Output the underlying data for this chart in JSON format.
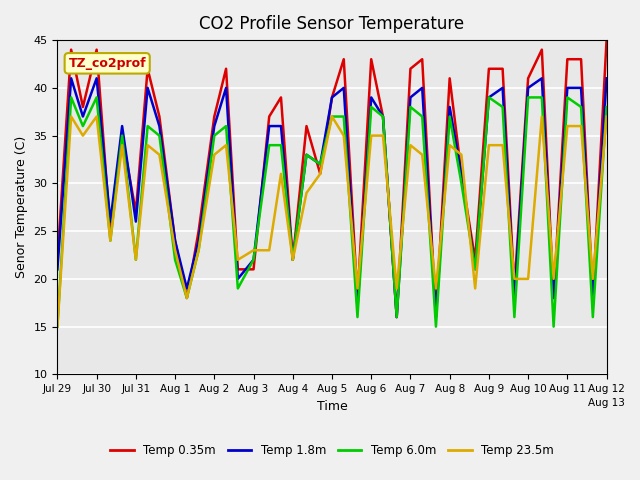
{
  "title": "CO2 Profile Sensor Temperature",
  "xlabel": "Time",
  "ylabel": "Senor Temperature (C)",
  "ylim": [
    10,
    45
  ],
  "xlim": [
    0,
    14
  ],
  "annotation": "TZ_co2prof",
  "legend": [
    {
      "label": "Temp 0.35m",
      "color": "#dd0000"
    },
    {
      "label": "Temp 1.8m",
      "color": "#0000cc"
    },
    {
      "label": "Temp 6.0m",
      "color": "#00cc00"
    },
    {
      "label": "Temp 23.5m",
      "color": "#ddaa00"
    }
  ],
  "series": {
    "red": {
      "x": [
        0,
        0.35,
        0.65,
        1.0,
        1.35,
        1.65,
        2.0,
        2.3,
        2.6,
        3.0,
        3.3,
        3.6,
        4.0,
        4.3,
        4.6,
        5.0,
        5.4,
        5.7,
        6.0,
        6.35,
        6.7,
        7.0,
        7.3,
        7.65,
        8.0,
        8.3,
        8.65,
        9.0,
        9.3,
        9.65,
        10.0,
        10.3,
        10.65,
        11.0,
        11.35,
        11.65,
        12.0,
        12.35,
        12.65,
        13.0,
        13.35,
        13.65,
        14.0
      ],
      "y": [
        22,
        44,
        38,
        44,
        25,
        35,
        27,
        42,
        37,
        24,
        18,
        25,
        37,
        42,
        21,
        21,
        37,
        39,
        22,
        36,
        31,
        39,
        43,
        18,
        43,
        37,
        16,
        42,
        43,
        16,
        41,
        31,
        22,
        42,
        42,
        19,
        41,
        44,
        18,
        43,
        43,
        18,
        45
      ]
    },
    "blue": {
      "x": [
        0,
        0.35,
        0.65,
        1.0,
        1.35,
        1.65,
        2.0,
        2.3,
        2.6,
        3.0,
        3.3,
        3.6,
        4.0,
        4.3,
        4.6,
        5.0,
        5.4,
        5.7,
        6.0,
        6.35,
        6.7,
        7.0,
        7.3,
        7.65,
        8.0,
        8.3,
        8.65,
        9.0,
        9.3,
        9.65,
        10.0,
        10.3,
        10.65,
        11.0,
        11.35,
        11.65,
        12.0,
        12.35,
        12.65,
        13.0,
        13.35,
        13.65,
        14.0
      ],
      "y": [
        21,
        41,
        37,
        41,
        26,
        36,
        26,
        40,
        36,
        24,
        19,
        24,
        36,
        40,
        20,
        22,
        36,
        36,
        22,
        33,
        32,
        39,
        40,
        17,
        39,
        37,
        16,
        39,
        40,
        16,
        38,
        31,
        21,
        39,
        40,
        18,
        40,
        41,
        18,
        40,
        40,
        18,
        41
      ]
    },
    "green": {
      "x": [
        0,
        0.35,
        0.65,
        1.0,
        1.35,
        1.65,
        2.0,
        2.3,
        2.6,
        3.0,
        3.3,
        3.6,
        4.0,
        4.3,
        4.6,
        5.0,
        5.4,
        5.7,
        6.0,
        6.35,
        6.7,
        7.0,
        7.3,
        7.65,
        8.0,
        8.3,
        8.65,
        9.0,
        9.3,
        9.65,
        10.0,
        10.3,
        10.65,
        11.0,
        11.35,
        11.65,
        12.0,
        12.35,
        12.65,
        13.0,
        13.35,
        13.65,
        14.0
      ],
      "y": [
        15,
        39,
        36,
        39,
        24,
        35,
        22,
        36,
        35,
        22,
        18,
        23,
        35,
        36,
        19,
        22,
        34,
        34,
        22,
        33,
        32,
        37,
        37,
        16,
        38,
        37,
        16,
        38,
        37,
        15,
        37,
        30,
        21,
        39,
        38,
        16,
        39,
        39,
        15,
        39,
        38,
        16,
        38
      ]
    },
    "orange": {
      "x": [
        0,
        0.35,
        0.65,
        1.0,
        1.35,
        1.65,
        2.0,
        2.3,
        2.6,
        3.0,
        3.3,
        3.6,
        4.0,
        4.3,
        4.6,
        5.0,
        5.4,
        5.7,
        6.0,
        6.35,
        6.7,
        7.0,
        7.3,
        7.65,
        8.0,
        8.3,
        8.65,
        9.0,
        9.3,
        9.65,
        10.0,
        10.3,
        10.65,
        11.0,
        11.35,
        11.65,
        12.0,
        12.35,
        12.65,
        13.0,
        13.35,
        13.65,
        14.0
      ],
      "y": [
        15,
        37,
        35,
        37,
        24,
        34,
        22,
        34,
        33,
        23,
        18,
        23,
        33,
        34,
        22,
        23,
        23,
        31,
        22,
        29,
        31,
        37,
        35,
        19,
        35,
        35,
        19,
        34,
        33,
        19,
        34,
        33,
        19,
        34,
        34,
        20,
        20,
        37,
        20,
        36,
        36,
        20,
        37
      ]
    }
  },
  "xtick_positions": [
    0,
    1,
    2,
    3,
    4,
    5,
    6,
    7,
    8,
    9,
    10,
    11,
    12,
    13,
    14
  ],
  "xtick_labels": [
    "Jul 29",
    "Jul 30",
    "Jul 31",
    "Aug 1",
    "Aug 2",
    "Aug 3",
    "Aug 4",
    "Aug 5",
    "Aug 6",
    "Aug 7",
    "Aug 8",
    "Aug 9",
    "Aug 10",
    "Aug 11",
    "Aug 12"
  ],
  "ytick_positions": [
    10,
    15,
    20,
    25,
    30,
    35,
    40,
    45
  ],
  "grid_color": "#ffffff",
  "plot_bg": "#e8e8e8",
  "fig_bg": "#f0f0f0",
  "linewidth": 1.8
}
